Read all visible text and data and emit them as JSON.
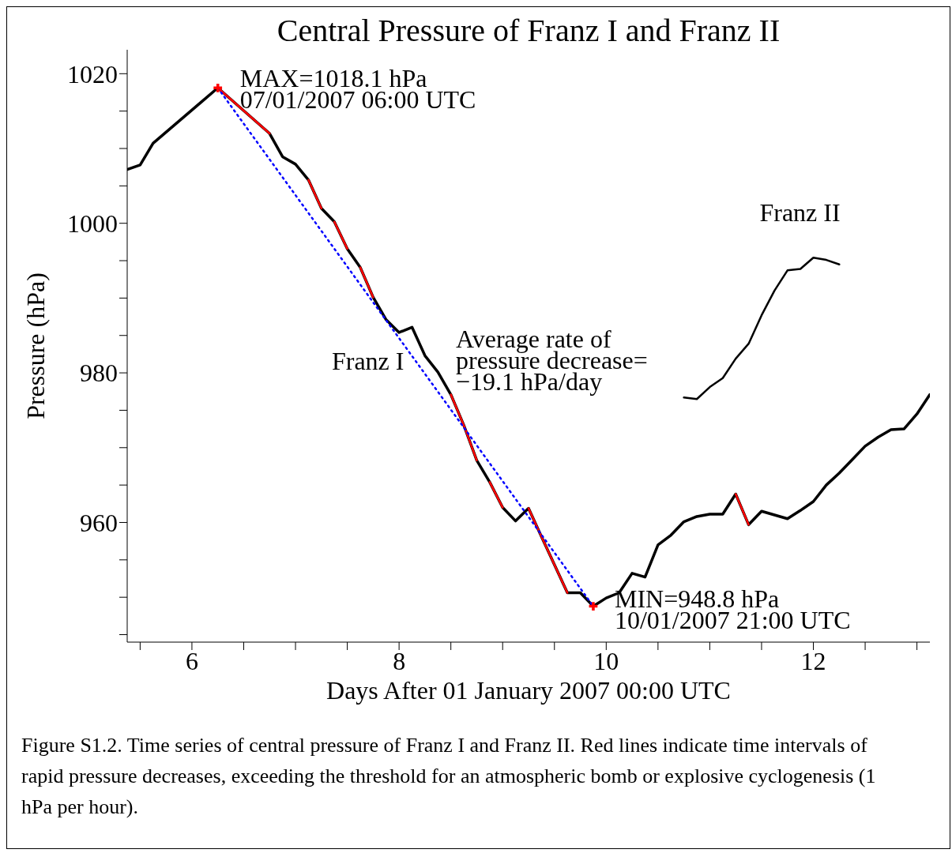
{
  "chart_data": {
    "type": "line",
    "title": "Central Pressure of Franz I and Franz II",
    "xlabel": "Days After 01 January 2007 00:00 UTC",
    "ylabel": "Pressure (hPa)",
    "xlim": [
      5.375,
      13.125
    ],
    "ylim": [
      944,
      1023.2
    ],
    "xticks": [
      {
        "value": 5.5,
        "label": null
      },
      6,
      {
        "value": 6.5,
        "label": null
      },
      {
        "value": 7,
        "label": null
      },
      {
        "value": 7.5,
        "label": null
      },
      8,
      {
        "value": 8.5,
        "label": null
      },
      {
        "value": 9,
        "label": null
      },
      {
        "value": 9.5,
        "label": null
      },
      10,
      {
        "value": 10.5,
        "label": null
      },
      {
        "value": 11,
        "label": null
      },
      {
        "value": 11.5,
        "label": null
      },
      12,
      {
        "value": 12.5,
        "label": null
      },
      {
        "value": 13,
        "label": null
      }
    ],
    "yticks": [
      {
        "value": 945,
        "label": null
      },
      {
        "value": 950,
        "label": null
      },
      {
        "value": 955,
        "label": null
      },
      960,
      {
        "value": 965,
        "label": null
      },
      {
        "value": 970,
        "label": null
      },
      {
        "value": 975,
        "label": null
      },
      980,
      {
        "value": 985,
        "label": null
      },
      {
        "value": 990,
        "label": null
      },
      {
        "value": 995,
        "label": null
      },
      1000,
      {
        "value": 1005,
        "label": null
      },
      {
        "value": 1010,
        "label": null
      },
      {
        "value": 1015,
        "label": null
      },
      1020
    ],
    "marker": "none",
    "line_style": "solid",
    "series": [
      {
        "name": "Franz I",
        "color": "#000000",
        "x": [
          5.375,
          5.5,
          5.625,
          6.25,
          6.75,
          6.875,
          7.0,
          7.125,
          7.25,
          7.375,
          7.5,
          7.625,
          7.75,
          7.875,
          8.0,
          8.125,
          8.25,
          8.375,
          8.5,
          8.625,
          8.75,
          8.875,
          9.0,
          9.125,
          9.25,
          9.375,
          9.625,
          9.75,
          9.875,
          10.0,
          10.125,
          10.25,
          10.375,
          10.5,
          10.625,
          10.75,
          10.875,
          11.0,
          11.125,
          11.25,
          11.375,
          11.5,
          11.75,
          11.875,
          12.0,
          12.125,
          12.25,
          12.375,
          12.5,
          12.625,
          12.75,
          12.875,
          13.0,
          13.125
        ],
        "values": [
          1007.2,
          1007.8,
          1010.7,
          1018.1,
          1012.0,
          1008.9,
          1007.9,
          1005.8,
          1002.0,
          1000.2,
          996.6,
          994.1,
          990.1,
          987.1,
          985.4,
          986.1,
          982.3,
          980.1,
          977.1,
          973.0,
          968.3,
          965.4,
          962.0,
          960.2,
          961.9,
          958.1,
          950.6,
          950.6,
          948.8,
          949.9,
          950.6,
          953.2,
          952.7,
          957.0,
          958.3,
          960.1,
          960.8,
          961.1,
          961.1,
          963.8,
          959.7,
          961.5,
          960.5,
          961.6,
          962.8,
          965.0,
          966.6,
          968.4,
          970.2,
          971.4,
          972.4,
          972.5,
          974.5,
          977.1
        ]
      },
      {
        "color": "#ff0000",
        "x": [
          6.25,
          6.75,
          7.0,
          7.125,
          7.25,
          7.3,
          7.375,
          7.5,
          7.55,
          7.625,
          7.75,
          8.1,
          8.5,
          8.625,
          8.75,
          8.8,
          8.875,
          9.0,
          9.1,
          9.25,
          9.375,
          9.625,
          10.5,
          11.25,
          11.375
        ],
        "values": [
          1018.1,
          1012.0,
          null,
          1005.8,
          1002.0,
          null,
          1000.2,
          996.6,
          null,
          994.1,
          990.1,
          null,
          977.1,
          973.0,
          968.3,
          null,
          965.4,
          962.0,
          null,
          961.9,
          958.1,
          950.6,
          null,
          963.8,
          959.7
        ]
      },
      {
        "name": "Franz II",
        "color": "#000000",
        "x": [
          10.75,
          10.875,
          11.0,
          11.125,
          11.25,
          11.375,
          11.5,
          11.625,
          11.75,
          11.875,
          12.0,
          12.125,
          12.25
        ],
        "values": [
          976.7,
          976.5,
          978.1,
          979.3,
          981.9,
          983.9,
          987.7,
          991.0,
          993.7,
          993.9,
          995.4,
          995.1,
          994.5
        ]
      },
      {
        "type": "line",
        "color": "#0000ff",
        "line_style": "dotted",
        "x": [
          6.25,
          9.875
        ],
        "values": [
          1018.1,
          948.8
        ]
      },
      {
        "type": "scatter",
        "color": "#ff0000",
        "marker": "cross",
        "x": [
          6.25,
          9.875
        ],
        "values": [
          1018.1,
          948.8
        ]
      }
    ],
    "annotations": [
      {
        "text": "MAX=1018.1 hPa\n07/01/2007 06:00 UTC",
        "x": 6.25,
        "y": 1018.1
      },
      "Average rate of\npressure decrease=\n−19.1 hPa/day",
      {
        "text": "MIN=948.8 hPa\n10/01/2007 21:00 UTC",
        "x": 9.875,
        "y": 948.8
      },
      "Figure S1.2. Time series of central pressure of Franz I and Franz II.  Red lines indicate time intervals of rapid pressure decreases, exceeding the threshold for an atmospheric bomb or explosive cyclogenesis (1 hPa per hour)."
    ]
  }
}
